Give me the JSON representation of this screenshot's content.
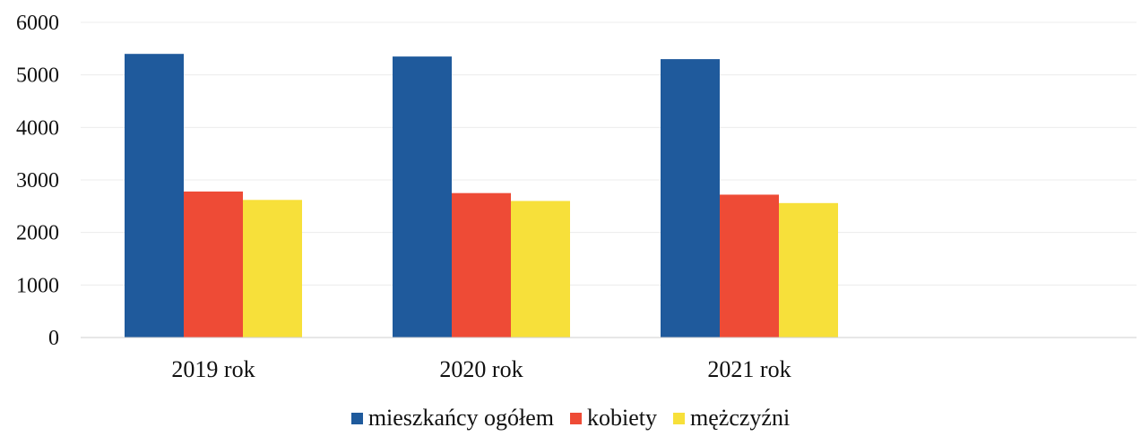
{
  "chart_data": {
    "type": "bar",
    "categories": [
      "2019 rok",
      "2020 rok",
      "2021 rok"
    ],
    "series": [
      {
        "name": "mieszkańcy ogółem",
        "color": "#1f5a9c",
        "values": [
          5400,
          5350,
          5300
        ]
      },
      {
        "name": "kobiety",
        "color": "#ee4b36",
        "values": [
          2780,
          2750,
          2720
        ]
      },
      {
        "name": "mężczyźni",
        "color": "#f7e03a",
        "values": [
          2620,
          2600,
          2560
        ]
      }
    ],
    "yticks": [
      "0",
      "1000",
      "2000",
      "3000",
      "4000",
      "5000",
      "6000"
    ],
    "ylim": [
      0,
      6000
    ],
    "grid": true,
    "legend_position": "bottom"
  }
}
